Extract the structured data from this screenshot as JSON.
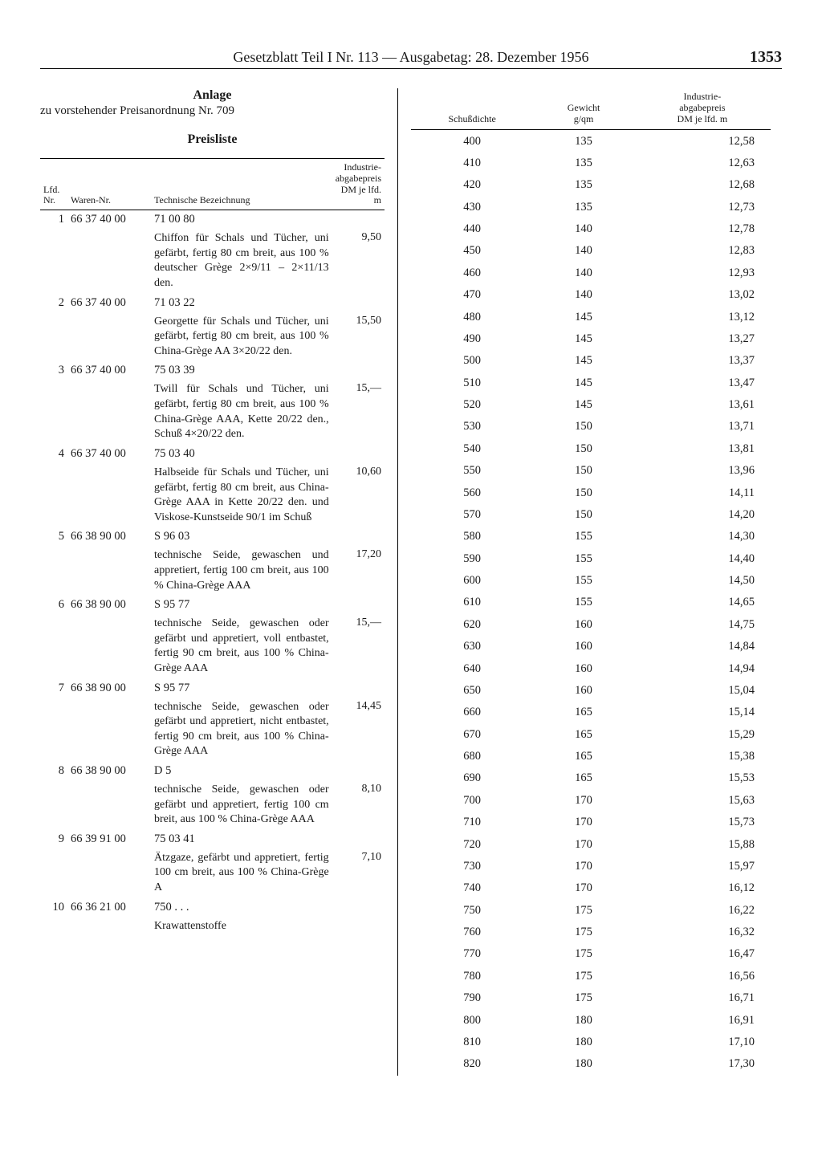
{
  "header": {
    "title": "Gesetzblatt Teil I Nr. 113 — Ausgabetag: 28. Dezember 1956",
    "page_number": "1353"
  },
  "left": {
    "anlage_title": "Anlage",
    "anlage_sub": "zu vorstehender Preisanordnung Nr. 709",
    "list_title": "Preisliste",
    "col_labels": {
      "lfd": "Lfd.\nNr.",
      "waren": "Waren-Nr.",
      "bez": "Technische Bezeichnung",
      "preis": "Industrie-\nabgabepreis\nDM je lfd. m"
    },
    "entries": [
      {
        "nr": "1",
        "waren": "66 37 40 00",
        "art": "71 00 80",
        "desc": "Chiffon für Schals und Tücher, uni gefärbt, fertig 80 cm breit, aus 100 % deutscher Grège 2×9/11 – 2×11/13 den.",
        "price": "9,50"
      },
      {
        "nr": "2",
        "waren": "66 37 40 00",
        "art": "71 03 22",
        "desc": "Georgette für Schals und Tücher, uni gefärbt, fertig 80 cm breit, aus 100 % China-Grège AA 3×20/22 den.",
        "price": "15,50"
      },
      {
        "nr": "3",
        "waren": "66 37 40 00",
        "art": "75 03 39",
        "desc": "Twill für Schals und Tücher, uni gefärbt, fertig 80 cm breit, aus 100 % China-Grège AAA, Kette 20/22 den., Schuß 4×20/22 den.",
        "price": "15,—"
      },
      {
        "nr": "4",
        "waren": "66 37 40 00",
        "art": "75 03 40",
        "desc": "Halbseide für Schals und Tücher, uni gefärbt, fertig 80 cm breit, aus China-Grège AAA in Kette 20/22 den. und Viskose-Kunstseide 90/1 im Schuß",
        "price": "10,60"
      },
      {
        "nr": "5",
        "waren": "66 38 90 00",
        "art": "S 96 03",
        "desc": "technische Seide, gewaschen und appretiert, fertig 100 cm breit, aus 100 % China-Grège AAA",
        "price": "17,20"
      },
      {
        "nr": "6",
        "waren": "66 38 90 00",
        "art": "S 95 77",
        "desc": "technische Seide, gewaschen oder gefärbt und appretiert, voll entbastet, fertig 90 cm breit, aus 100 % China-Grège AAA",
        "price": "15,—"
      },
      {
        "nr": "7",
        "waren": "66 38 90 00",
        "art": "S 95 77",
        "desc": "technische Seide, gewaschen oder gefärbt und appretiert, nicht entbastet, fertig 90 cm breit, aus 100 % China-Grège AAA",
        "price": "14,45"
      },
      {
        "nr": "8",
        "waren": "66 38 90 00",
        "art": "D 5",
        "desc": "technische Seide, gewaschen oder gefärbt und appretiert, fertig 100 cm breit, aus 100 % China-Grège AAA",
        "price": "8,10"
      },
      {
        "nr": "9",
        "waren": "66 39 91 00",
        "art": "75 03 41",
        "desc": "Ätzgaze, gefärbt und appretiert, fertig 100 cm breit, aus 100 % China-Grège A",
        "price": "7,10"
      },
      {
        "nr": "10",
        "waren": "66 36 21 00",
        "art": "750 . . .",
        "desc": "Krawattenstoffe",
        "price": ""
      }
    ]
  },
  "right": {
    "col_labels": {
      "schuss": "Schußdichte",
      "gewicht": "Gewicht\ng/qm",
      "preis": "Industrie-\nabgabepreis\nDM je lfd. m"
    },
    "rows": [
      [
        "400",
        "135",
        "12,58"
      ],
      [
        "410",
        "135",
        "12,63"
      ],
      [
        "420",
        "135",
        "12,68"
      ],
      [
        "430",
        "135",
        "12,73"
      ],
      [
        "440",
        "140",
        "12,78"
      ],
      [
        "450",
        "140",
        "12,83"
      ],
      [
        "460",
        "140",
        "12,93"
      ],
      [
        "470",
        "140",
        "13,02"
      ],
      [
        "480",
        "145",
        "13,12"
      ],
      [
        "490",
        "145",
        "13,27"
      ],
      [
        "500",
        "145",
        "13,37"
      ],
      [
        "510",
        "145",
        "13,47"
      ],
      [
        "520",
        "145",
        "13,61"
      ],
      [
        "530",
        "150",
        "13,71"
      ],
      [
        "540",
        "150",
        "13,81"
      ],
      [
        "550",
        "150",
        "13,96"
      ],
      [
        "560",
        "150",
        "14,11"
      ],
      [
        "570",
        "150",
        "14,20"
      ],
      [
        "580",
        "155",
        "14,30"
      ],
      [
        "590",
        "155",
        "14,40"
      ],
      [
        "600",
        "155",
        "14,50"
      ],
      [
        "610",
        "155",
        "14,65"
      ],
      [
        "620",
        "160",
        "14,75"
      ],
      [
        "630",
        "160",
        "14,84"
      ],
      [
        "640",
        "160",
        "14,94"
      ],
      [
        "650",
        "160",
        "15,04"
      ],
      [
        "660",
        "165",
        "15,14"
      ],
      [
        "670",
        "165",
        "15,29"
      ],
      [
        "680",
        "165",
        "15,38"
      ],
      [
        "690",
        "165",
        "15,53"
      ],
      [
        "700",
        "170",
        "15,63"
      ],
      [
        "710",
        "170",
        "15,73"
      ],
      [
        "720",
        "170",
        "15,88"
      ],
      [
        "730",
        "170",
        "15,97"
      ],
      [
        "740",
        "170",
        "16,12"
      ],
      [
        "750",
        "175",
        "16,22"
      ],
      [
        "760",
        "175",
        "16,32"
      ],
      [
        "770",
        "175",
        "16,47"
      ],
      [
        "780",
        "175",
        "16,56"
      ],
      [
        "790",
        "175",
        "16,71"
      ],
      [
        "800",
        "180",
        "16,91"
      ],
      [
        "810",
        "180",
        "17,10"
      ],
      [
        "820",
        "180",
        "17,30"
      ]
    ]
  }
}
